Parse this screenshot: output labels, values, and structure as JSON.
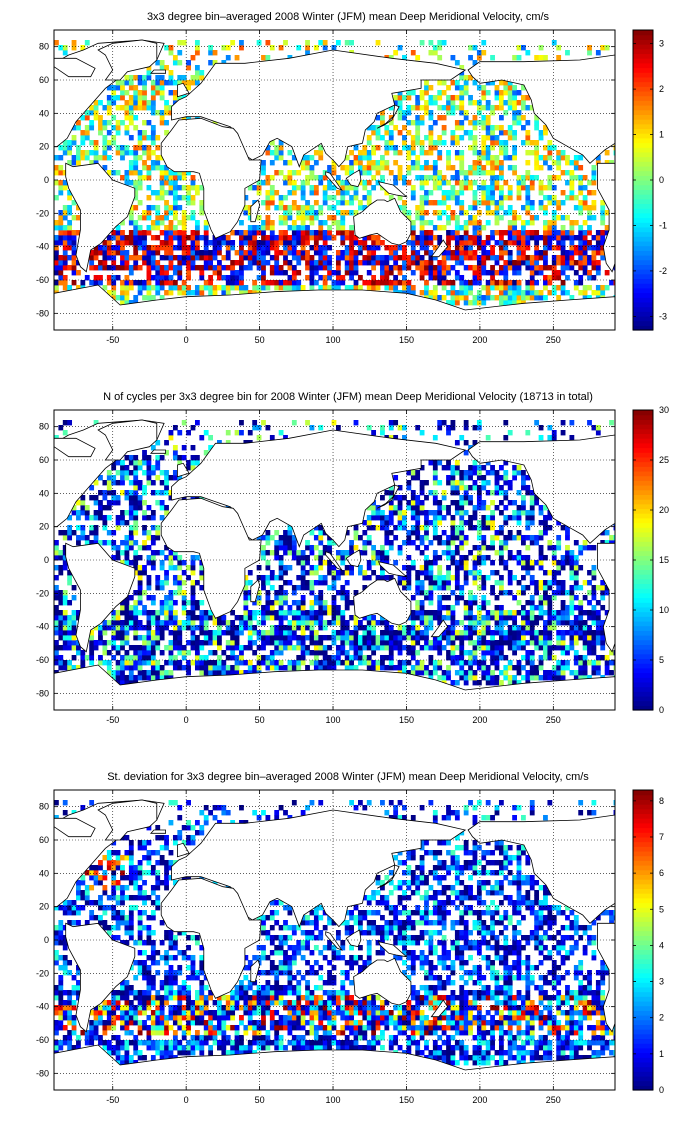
{
  "chart_data": [
    {
      "type": "heatmap",
      "title": "3x3 degree bin–averaged 2008 Winter (JFM) mean Deep Meridional Velocity, cm/s",
      "bin_size_deg": 3,
      "xlim": [
        -90,
        292
      ],
      "ylim": [
        -90,
        90
      ],
      "xticks": [
        -50,
        0,
        50,
        100,
        150,
        200,
        250
      ],
      "yticks": [
        -80,
        -60,
        -40,
        -20,
        0,
        20,
        40,
        60,
        80
      ],
      "grid": true,
      "colorbar": {
        "range": [
          -3.3,
          3.3
        ],
        "ticks": [
          -3,
          -2,
          -1,
          0,
          1,
          2,
          3
        ],
        "colormap": "jet"
      },
      "field": "velocity"
    },
    {
      "type": "heatmap",
      "title": "N of cycles per 3x3 degree bin for 2008 Winter (JFM) mean Deep Meridional Velocity (18713 in total)",
      "bin_size_deg": 3,
      "xlim": [
        -90,
        292
      ],
      "ylim": [
        -90,
        90
      ],
      "xticks": [
        -50,
        0,
        50,
        100,
        150,
        200,
        250
      ],
      "yticks": [
        -80,
        -60,
        -40,
        -20,
        0,
        20,
        40,
        60,
        80
      ],
      "grid": true,
      "colorbar": {
        "range": [
          0,
          30
        ],
        "ticks": [
          0,
          5,
          10,
          15,
          20,
          25,
          30
        ],
        "colormap": "jet"
      },
      "field": "count"
    },
    {
      "type": "heatmap",
      "title": "St. deviation for 3x3 degree bin–averaged 2008 Winter (JFM) mean Deep Meridional Velocity, cm/s",
      "bin_size_deg": 3,
      "xlim": [
        -90,
        292
      ],
      "ylim": [
        -90,
        90
      ],
      "xticks": [
        -50,
        0,
        50,
        100,
        150,
        200,
        250
      ],
      "yticks": [
        -80,
        -60,
        -40,
        -20,
        0,
        20,
        40,
        60,
        80
      ],
      "grid": true,
      "colorbar": {
        "range": [
          0,
          8.3
        ],
        "ticks": [
          0,
          1,
          2,
          3,
          4,
          5,
          6,
          7,
          8
        ],
        "colormap": "jet"
      },
      "field": "stdev"
    }
  ]
}
